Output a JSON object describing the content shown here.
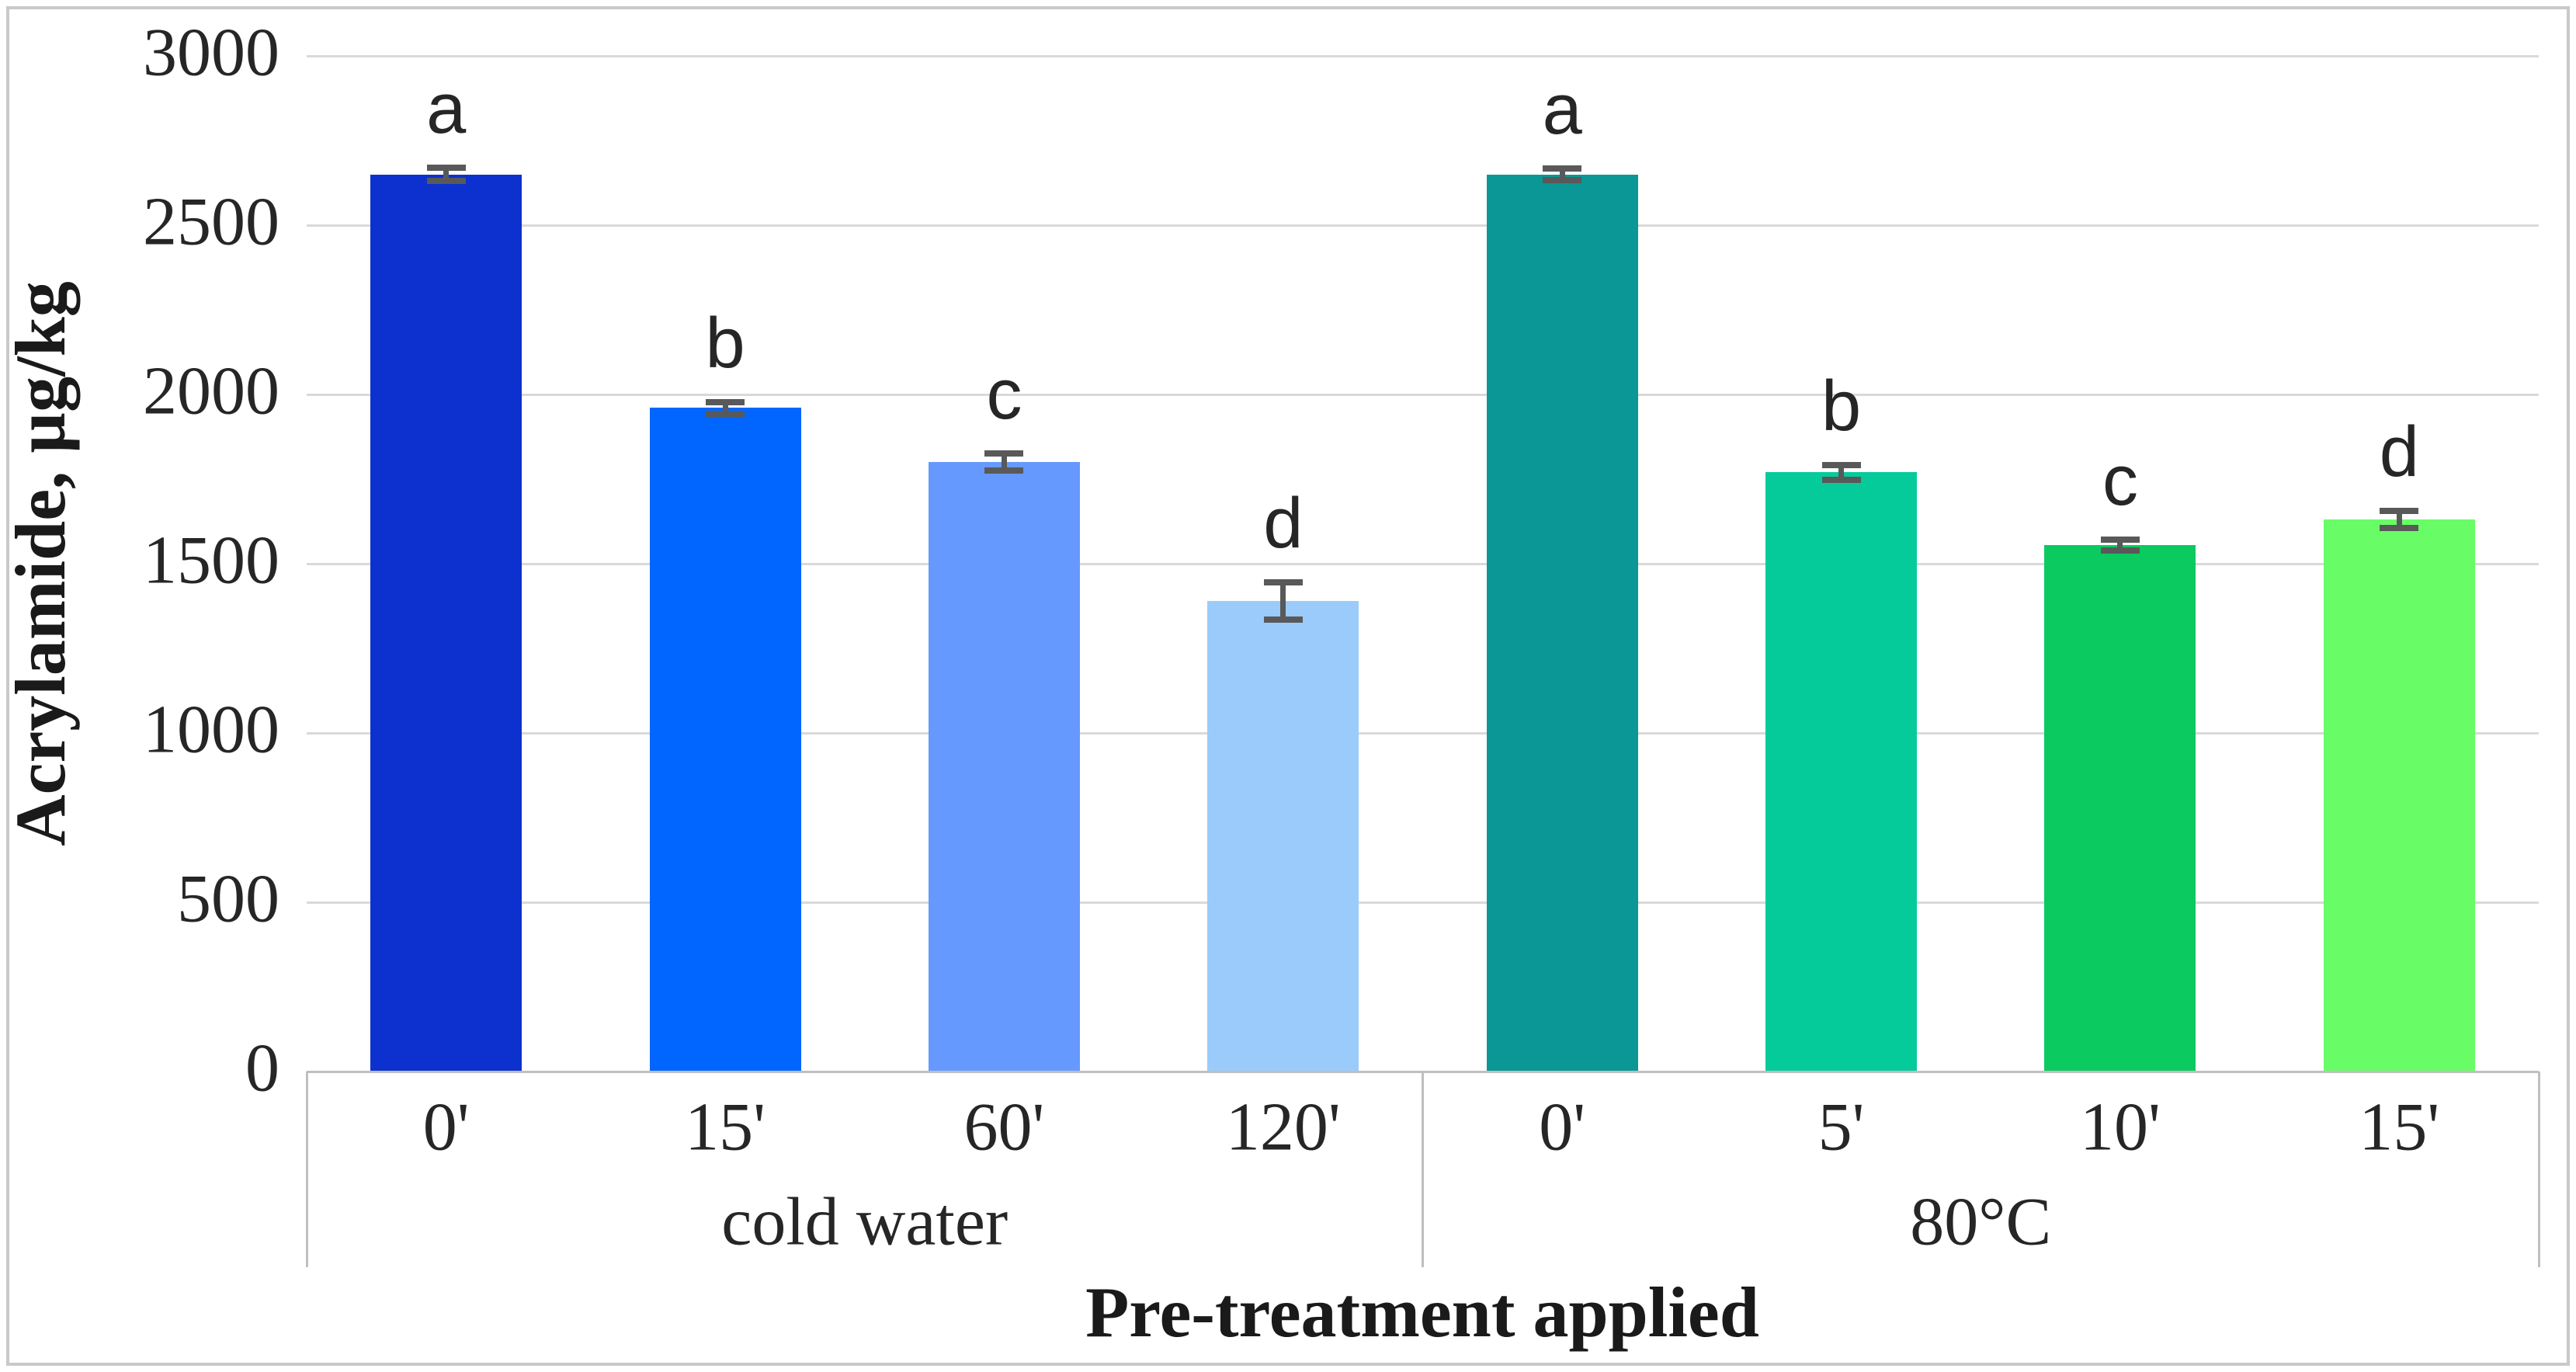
{
  "figure": {
    "y_axis_title": "Acrylamide, µg/kg",
    "x_axis_title": "Pre-treatment applied"
  },
  "chart_data": {
    "type": "bar",
    "title": "",
    "ylabel": "Acrylamide, µg/kg",
    "xlabel": "Pre-treatment applied",
    "ylim": [
      0,
      3000
    ],
    "yticks": [
      0,
      500,
      1000,
      1500,
      2000,
      2500,
      3000
    ],
    "grid": true,
    "legend": "none",
    "error_bars": true,
    "groups": [
      {
        "label": "cold water",
        "bars": [
          {
            "category": "0'",
            "value": 2650,
            "error": 20,
            "letter": "a",
            "color": "#0d31cf"
          },
          {
            "category": "15'",
            "value": 1960,
            "error": 18,
            "letter": "b",
            "color": "#0066ff"
          },
          {
            "category": "60'",
            "value": 1800,
            "error": 25,
            "letter": "c",
            "color": "#6699fe"
          },
          {
            "category": "120'",
            "value": 1390,
            "error": 55,
            "letter": "d",
            "color": "#9acbfb"
          }
        ]
      },
      {
        "label": "80°C",
        "bars": [
          {
            "category": "0'",
            "value": 2650,
            "error": 18,
            "letter": "a",
            "color": "#0a9795"
          },
          {
            "category": "5'",
            "value": 1770,
            "error": 22,
            "letter": "b",
            "color": "#05cb9b"
          },
          {
            "category": "10'",
            "value": 1555,
            "error": 15,
            "letter": "c",
            "color": "#0bca5f"
          },
          {
            "category": "15'",
            "value": 1630,
            "error": 25,
            "letter": "d",
            "color": "#68fd66"
          }
        ]
      }
    ],
    "colors": {
      "gridline": "#d9d9d9",
      "axis_line": "#bfbfbf",
      "error_bar": "#595959",
      "text": "#262626"
    }
  }
}
